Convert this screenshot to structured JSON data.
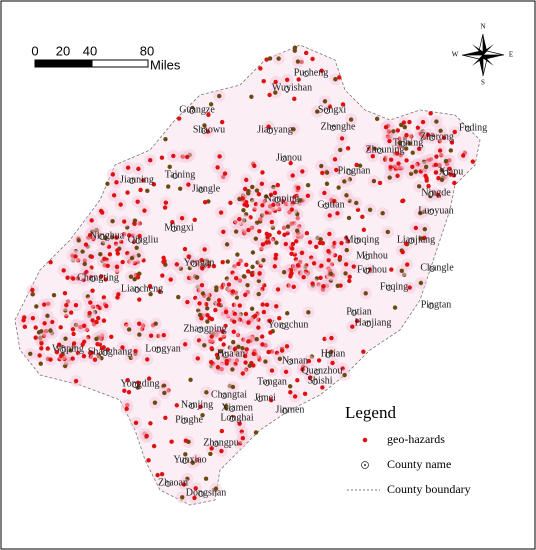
{
  "scale_bar": {
    "ticks": [
      0,
      20,
      40,
      80
    ],
    "unit": "Miles"
  },
  "compass": {
    "n": "N",
    "e": "E",
    "s": "S",
    "w": "W"
  },
  "counties": [
    "Pucheng",
    "Wuyishan",
    "Guangze",
    "Songxi",
    "Zhenghe",
    "Shaowu",
    "Jianyang",
    "Taining",
    "Zherong",
    "Fuding",
    "Zhouning",
    "Jianou",
    "Pingnan",
    "Xiapu",
    "Jianning",
    "Taining",
    "Jiangle",
    "Nanping",
    "Gutian",
    "Ningde",
    "Luoyuan",
    "Mingxi",
    "Ninghua",
    "Qingliu",
    "Yongan",
    "Minqing",
    "Lianjiang",
    "Minhou",
    "Fuzhou",
    "Changle",
    "Changting",
    "Liancheng",
    "Fuqing",
    "Pingtan",
    "Putian",
    "Hanjiang",
    "Yongchun",
    "Zhangping",
    "Wuping",
    "Shanghang",
    "Longyan",
    "Hua'an",
    "Nanan",
    "Huian",
    "Quanzhou",
    "Shishi",
    "Tongan",
    "Yongding",
    "Changtai",
    "Jimei",
    "Nanjing",
    "Xiamen",
    "Longhai",
    "Jinmen",
    "Pinghe",
    "Zhangpu",
    "Yunxiao",
    "Zhaoan",
    "Dongshan"
  ],
  "legend": {
    "title": "Legend",
    "items": [
      "geo-hazards",
      "County name",
      "County boundary"
    ]
  }
}
